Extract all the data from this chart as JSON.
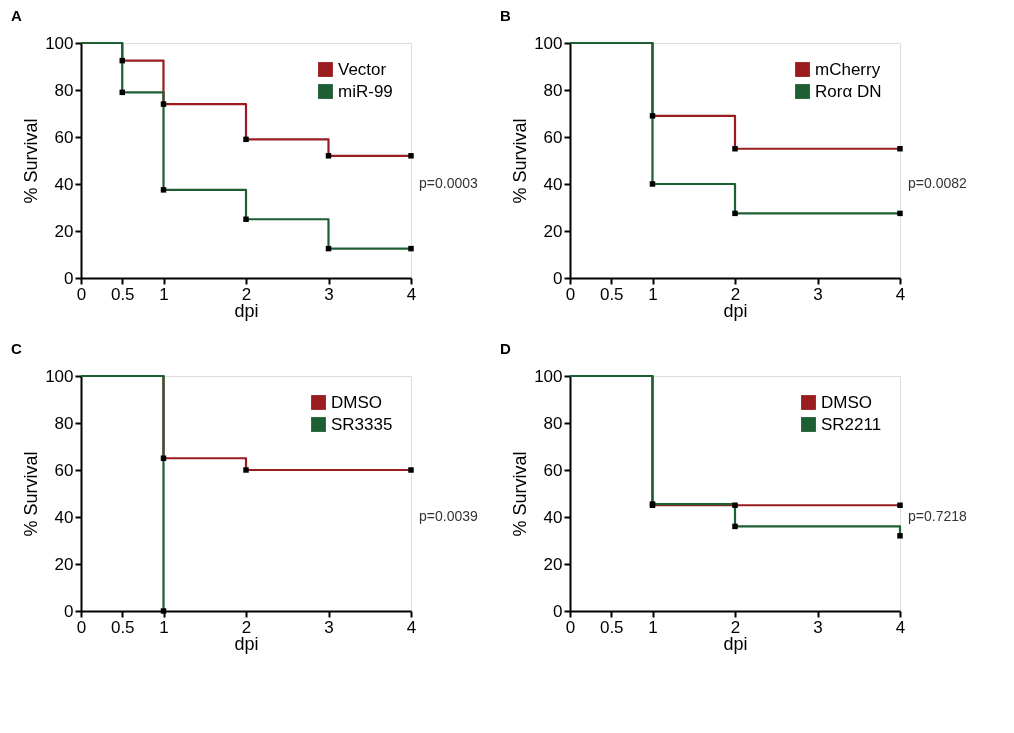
{
  "chart_data": [
    {
      "type": "step",
      "title": "A",
      "xlabel": "dpi",
      "ylabel": "% Survival",
      "xlim": [
        0,
        4
      ],
      "xticks": [
        0,
        0.5,
        1,
        2,
        3,
        4
      ],
      "ylim": [
        0,
        100
      ],
      "yticks": [
        0,
        20,
        40,
        60,
        80,
        100
      ],
      "grid": false,
      "legend": "top right",
      "marker": "square",
      "line_style": "solid",
      "series": [
        {
          "name": "Vector",
          "color": "#9b1c1f",
          "x": [
            0,
            0.5,
            1,
            2,
            3,
            4
          ],
          "values": [
            100,
            92.5,
            74,
            59,
            52,
            52
          ]
        },
        {
          "name": "miR-99",
          "color": "#1d5e32",
          "x": [
            0,
            0.5,
            1,
            2,
            3,
            4
          ],
          "values": [
            100,
            79,
            37.5,
            25,
            12.5,
            12.5
          ]
        }
      ],
      "annotations": [
        "p=0.0003"
      ]
    },
    {
      "type": "step",
      "title": "B",
      "xlabel": "dpi",
      "ylabel": "% Survival",
      "xlim": [
        0,
        4
      ],
      "xticks": [
        0,
        0.5,
        1,
        2,
        3,
        4
      ],
      "ylim": [
        0,
        100
      ],
      "yticks": [
        0,
        20,
        40,
        60,
        80,
        100
      ],
      "grid": false,
      "legend": "top right",
      "marker": "square",
      "line_style": "solid",
      "series": [
        {
          "name": "mCherry",
          "color": "#9b1c1f",
          "x": [
            0,
            1,
            2,
            4
          ],
          "values": [
            100,
            69,
            55,
            55
          ]
        },
        {
          "name": "Rorα DN",
          "color": "#1d5e32",
          "x": [
            0,
            1,
            2,
            4
          ],
          "values": [
            100,
            40,
            27.5,
            27.5
          ]
        }
      ],
      "annotations": [
        "p=0.0082"
      ]
    },
    {
      "type": "step",
      "title": "C",
      "xlabel": "dpi",
      "ylabel": "% Survival",
      "xlim": [
        0,
        4
      ],
      "xticks": [
        0,
        0.5,
        1,
        2,
        3,
        4
      ],
      "ylim": [
        0,
        100
      ],
      "yticks": [
        0,
        20,
        40,
        60,
        80,
        100
      ],
      "grid": false,
      "legend": "top right",
      "marker": "square",
      "line_style": "solid",
      "series": [
        {
          "name": "DMSO",
          "color": "#9b1c1f",
          "x": [
            0,
            1,
            2,
            4
          ],
          "values": [
            100,
            65,
            60,
            60
          ]
        },
        {
          "name": "SR3335",
          "color": "#1d5e32",
          "x": [
            0,
            1
          ],
          "values": [
            100,
            0
          ]
        }
      ],
      "annotations": [
        "p=0.0039"
      ]
    },
    {
      "type": "step",
      "title": "D",
      "xlabel": "dpi",
      "ylabel": "% Survival",
      "xlim": [
        0,
        4
      ],
      "xticks": [
        0,
        0.5,
        1,
        2,
        3,
        4
      ],
      "ylim": [
        0,
        100
      ],
      "yticks": [
        0,
        20,
        40,
        60,
        80,
        100
      ],
      "grid": false,
      "legend": "top right",
      "marker": "square",
      "line_style": "solid",
      "series": [
        {
          "name": "DMSO",
          "color": "#9b1c1f",
          "x": [
            0,
            1,
            2,
            4
          ],
          "values": [
            100,
            45,
            45,
            45
          ]
        },
        {
          "name": "SR2211",
          "color": "#1d5e32",
          "x": [
            0,
            1,
            2,
            4
          ],
          "values": [
            100,
            45.5,
            36,
            32
          ]
        }
      ],
      "annotations": [
        "p=0.7218"
      ]
    }
  ]
}
